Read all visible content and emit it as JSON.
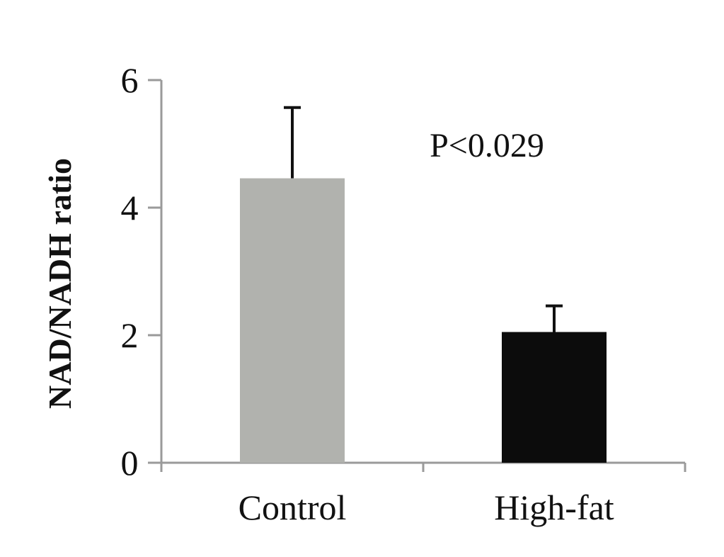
{
  "chart_data": {
    "type": "bar",
    "title": "",
    "xlabel": "",
    "ylabel": "NAD/NADH ratio",
    "categories": [
      "Control",
      "High-fat"
    ],
    "values": [
      4.46,
      2.05
    ],
    "error": [
      1.11,
      0.41
    ],
    "colors": [
      "#b1b2ae",
      "#0c0c0c"
    ],
    "ylim": [
      0,
      6
    ],
    "yticks": [
      0,
      2,
      4,
      6
    ],
    "ytick_labels": [
      "0",
      "2",
      "4",
      "6"
    ],
    "annotation": "P<0.029",
    "grid": false,
    "legend": "none"
  }
}
